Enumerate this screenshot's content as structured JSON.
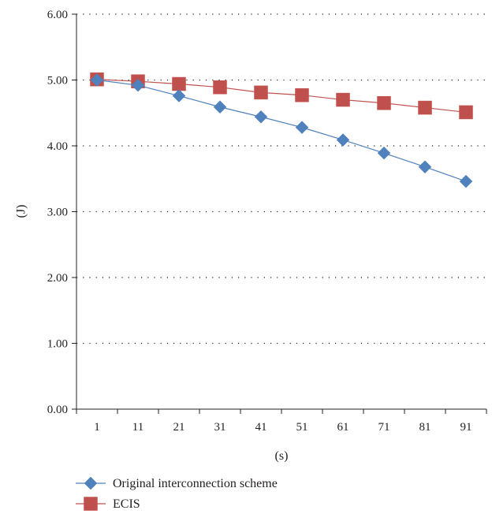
{
  "chart_data": {
    "type": "line",
    "title": "",
    "xlabel": "(s)",
    "ylabel": "(J)",
    "categories": [
      "1",
      "11",
      "21",
      "31",
      "41",
      "51",
      "61",
      "71",
      "81",
      "91"
    ],
    "y_tick_labels": [
      "0.00",
      "1.00",
      "2.00",
      "3.00",
      "4.00",
      "5.00",
      "6.00"
    ],
    "ylim": [
      0,
      6
    ],
    "grid": "horizontal-dotted",
    "legend_position": "bottom-left",
    "series": [
      {
        "name": "Original interconnection scheme",
        "marker": "diamond",
        "color": "#4f81bd",
        "values": [
          5.0,
          4.92,
          4.76,
          4.59,
          4.44,
          4.28,
          4.09,
          3.89,
          3.68,
          3.46
        ]
      },
      {
        "name": "ECIS",
        "marker": "square",
        "color": "#c0504d",
        "values": [
          5.01,
          4.98,
          4.94,
          4.89,
          4.81,
          4.77,
          4.7,
          4.65,
          4.58,
          4.51
        ]
      }
    ]
  }
}
